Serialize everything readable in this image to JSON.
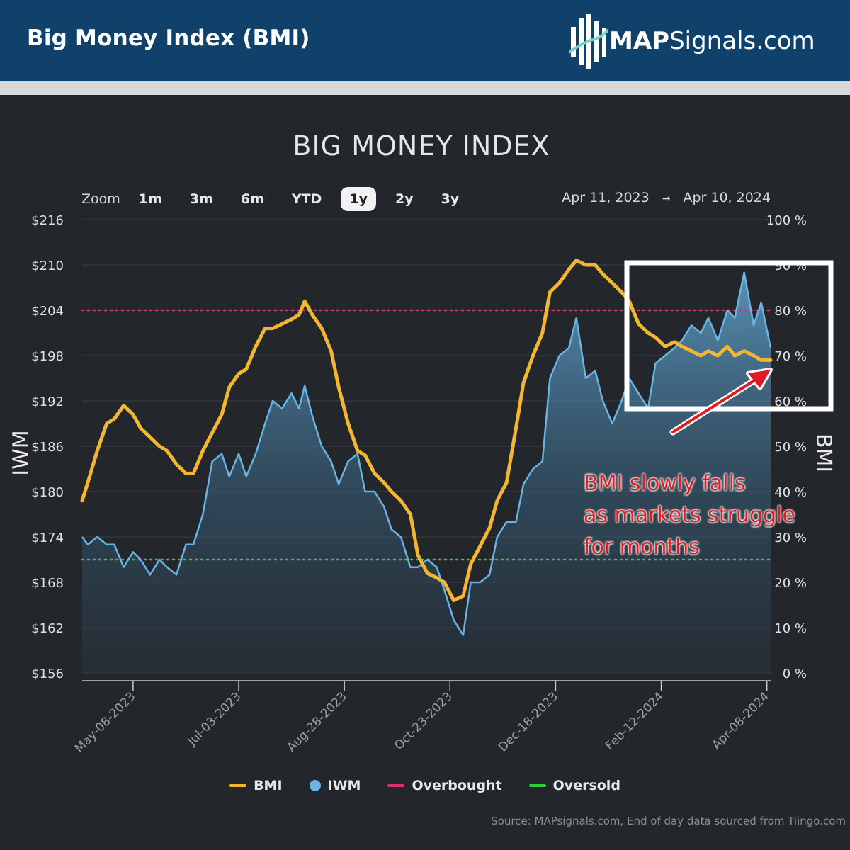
{
  "header": {
    "title": "Big Money Index (BMI)",
    "logo_strong": "MAP",
    "logo_rest": "Signals.com"
  },
  "zoom": {
    "label": "Zoom",
    "options": [
      "1m",
      "3m",
      "6m",
      "YTD",
      "1y",
      "2y",
      "3y"
    ],
    "selected": "1y"
  },
  "date_range": {
    "from": "Apr 11, 2023",
    "to": "Apr 10, 2024",
    "arrow": "→"
  },
  "annotation": {
    "lines": [
      "BMI slowly falls",
      "as markets struggle",
      "for months"
    ]
  },
  "source": "Source: MAPsignals.com, End of day data sourced from Tiingo.com",
  "colors": {
    "bmi": "#f2b630",
    "iwm": "#6ab4e4",
    "overbought": "#d6336c",
    "oversold": "#2ecc40",
    "annotation": "#e01b24"
  },
  "chart_data": {
    "type": "line",
    "title": "BIG MONEY INDEX",
    "x_range": [
      "2023-04-11",
      "2024-04-10"
    ],
    "xticks": [
      "May-08-2023",
      "Jul-03-2023",
      "Aug-28-2023",
      "Oct-23-2023",
      "Dec-18-2023",
      "Feb-12-2024",
      "Apr-08-2024"
    ],
    "y_left": {
      "label": "IWM",
      "range": [
        156,
        216
      ],
      "ticks": [
        "$216",
        "$210",
        "$204",
        "$198",
        "$192",
        "$186",
        "$180",
        "$174",
        "$168",
        "$162",
        "$156"
      ]
    },
    "y_right": {
      "label": "BMI",
      "range": [
        0,
        100
      ],
      "ticks": [
        "100 %",
        "90 %",
        "80 %",
        "70 %",
        "60 %",
        "50 %",
        "40 %",
        "30 %",
        "20 %",
        "10 %",
        "0 %"
      ]
    },
    "reference_lines": [
      {
        "name": "Overbought",
        "axis": "right",
        "value": 80
      },
      {
        "name": "Oversold",
        "axis": "right",
        "value": 25
      }
    ],
    "series": [
      {
        "name": "BMI",
        "axis": "right",
        "style": "line",
        "points": [
          [
            "2023-04-11",
            38
          ],
          [
            "2023-04-14",
            42
          ],
          [
            "2023-04-19",
            49
          ],
          [
            "2023-04-24",
            55
          ],
          [
            "2023-04-28",
            56
          ],
          [
            "2023-05-03",
            59
          ],
          [
            "2023-05-08",
            57
          ],
          [
            "2023-05-12",
            54
          ],
          [
            "2023-05-17",
            52
          ],
          [
            "2023-05-22",
            50
          ],
          [
            "2023-05-26",
            49
          ],
          [
            "2023-05-31",
            46
          ],
          [
            "2023-06-05",
            44
          ],
          [
            "2023-06-09",
            44
          ],
          [
            "2023-06-14",
            49
          ],
          [
            "2023-06-19",
            53
          ],
          [
            "2023-06-24",
            57
          ],
          [
            "2023-06-28",
            63
          ],
          [
            "2023-07-03",
            66
          ],
          [
            "2023-07-07",
            67
          ],
          [
            "2023-07-12",
            72
          ],
          [
            "2023-07-17",
            76
          ],
          [
            "2023-07-21",
            76
          ],
          [
            "2023-07-26",
            77
          ],
          [
            "2023-07-31",
            78
          ],
          [
            "2023-08-04",
            79
          ],
          [
            "2023-08-07",
            82
          ],
          [
            "2023-08-11",
            79
          ],
          [
            "2023-08-16",
            76
          ],
          [
            "2023-08-21",
            71
          ],
          [
            "2023-08-25",
            63
          ],
          [
            "2023-08-30",
            55
          ],
          [
            "2023-09-04",
            49
          ],
          [
            "2023-09-08",
            48
          ],
          [
            "2023-09-13",
            44
          ],
          [
            "2023-09-18",
            42
          ],
          [
            "2023-09-22",
            40
          ],
          [
            "2023-09-27",
            38
          ],
          [
            "2023-10-02",
            35
          ],
          [
            "2023-10-06",
            26
          ],
          [
            "2023-10-11",
            22
          ],
          [
            "2023-10-16",
            21
          ],
          [
            "2023-10-20",
            20
          ],
          [
            "2023-10-25",
            16
          ],
          [
            "2023-10-30",
            17
          ],
          [
            "2023-11-03",
            24
          ],
          [
            "2023-11-08",
            28
          ],
          [
            "2023-11-13",
            32
          ],
          [
            "2023-11-17",
            38
          ],
          [
            "2023-11-22",
            42
          ],
          [
            "2023-11-27",
            54
          ],
          [
            "2023-12-01",
            64
          ],
          [
            "2023-12-06",
            70
          ],
          [
            "2023-12-11",
            75
          ],
          [
            "2023-12-15",
            84
          ],
          [
            "2023-12-20",
            86
          ],
          [
            "2023-12-25",
            89
          ],
          [
            "2023-12-29",
            91
          ],
          [
            "2024-01-03",
            90
          ],
          [
            "2024-01-08",
            90
          ],
          [
            "2024-01-12",
            88
          ],
          [
            "2024-01-17",
            86
          ],
          [
            "2024-01-22",
            84
          ],
          [
            "2024-01-26",
            82
          ],
          [
            "2024-01-31",
            77
          ],
          [
            "2024-02-05",
            75
          ],
          [
            "2024-02-09",
            74
          ],
          [
            "2024-02-14",
            72
          ],
          [
            "2024-02-19",
            73
          ],
          [
            "2024-02-23",
            72
          ],
          [
            "2024-02-28",
            71
          ],
          [
            "2024-03-04",
            70
          ],
          [
            "2024-03-08",
            71
          ],
          [
            "2024-03-13",
            70
          ],
          [
            "2024-03-18",
            72
          ],
          [
            "2024-03-22",
            70
          ],
          [
            "2024-03-27",
            71
          ],
          [
            "2024-04-01",
            70
          ],
          [
            "2024-04-05",
            69
          ],
          [
            "2024-04-10",
            69
          ]
        ]
      },
      {
        "name": "IWM",
        "axis": "left",
        "style": "area",
        "points": [
          [
            "2023-04-11",
            174
          ],
          [
            "2023-04-14",
            173
          ],
          [
            "2023-04-19",
            174
          ],
          [
            "2023-04-24",
            173
          ],
          [
            "2023-04-28",
            173
          ],
          [
            "2023-05-03",
            170
          ],
          [
            "2023-05-08",
            172
          ],
          [
            "2023-05-12",
            171
          ],
          [
            "2023-05-17",
            169
          ],
          [
            "2023-05-22",
            171
          ],
          [
            "2023-05-26",
            170
          ],
          [
            "2023-05-31",
            169
          ],
          [
            "2023-06-05",
            173
          ],
          [
            "2023-06-09",
            173
          ],
          [
            "2023-06-14",
            177
          ],
          [
            "2023-06-19",
            184
          ],
          [
            "2023-06-24",
            185
          ],
          [
            "2023-06-28",
            182
          ],
          [
            "2023-07-03",
            185
          ],
          [
            "2023-07-07",
            182
          ],
          [
            "2023-07-12",
            185
          ],
          [
            "2023-07-17",
            189
          ],
          [
            "2023-07-21",
            192
          ],
          [
            "2023-07-26",
            191
          ],
          [
            "2023-07-31",
            193
          ],
          [
            "2023-08-04",
            191
          ],
          [
            "2023-08-07",
            194
          ],
          [
            "2023-08-11",
            190
          ],
          [
            "2023-08-16",
            186
          ],
          [
            "2023-08-21",
            184
          ],
          [
            "2023-08-25",
            181
          ],
          [
            "2023-08-30",
            184
          ],
          [
            "2023-09-04",
            185
          ],
          [
            "2023-09-08",
            180
          ],
          [
            "2023-09-13",
            180
          ],
          [
            "2023-09-18",
            178
          ],
          [
            "2023-09-22",
            175
          ],
          [
            "2023-09-27",
            174
          ],
          [
            "2023-10-02",
            170
          ],
          [
            "2023-10-06",
            170
          ],
          [
            "2023-10-11",
            171
          ],
          [
            "2023-10-16",
            170
          ],
          [
            "2023-10-20",
            167
          ],
          [
            "2023-10-25",
            163
          ],
          [
            "2023-10-30",
            161
          ],
          [
            "2023-11-03",
            168
          ],
          [
            "2023-11-08",
            168
          ],
          [
            "2023-11-13",
            169
          ],
          [
            "2023-11-17",
            174
          ],
          [
            "2023-11-22",
            176
          ],
          [
            "2023-11-27",
            176
          ],
          [
            "2023-12-01",
            181
          ],
          [
            "2023-12-06",
            183
          ],
          [
            "2023-12-11",
            184
          ],
          [
            "2023-12-15",
            195
          ],
          [
            "2023-12-20",
            198
          ],
          [
            "2023-12-25",
            199
          ],
          [
            "2023-12-29",
            203
          ],
          [
            "2024-01-03",
            195
          ],
          [
            "2024-01-08",
            196
          ],
          [
            "2024-01-12",
            192
          ],
          [
            "2024-01-17",
            189
          ],
          [
            "2024-01-22",
            192
          ],
          [
            "2024-01-26",
            195
          ],
          [
            "2024-01-31",
            193
          ],
          [
            "2024-02-05",
            191
          ],
          [
            "2024-02-09",
            197
          ],
          [
            "2024-02-14",
            198
          ],
          [
            "2024-02-19",
            199
          ],
          [
            "2024-02-23",
            200
          ],
          [
            "2024-02-28",
            202
          ],
          [
            "2024-03-04",
            201
          ],
          [
            "2024-03-08",
            203
          ],
          [
            "2024-03-13",
            200
          ],
          [
            "2024-03-18",
            204
          ],
          [
            "2024-03-22",
            203
          ],
          [
            "2024-03-27",
            209
          ],
          [
            "2024-04-01",
            202
          ],
          [
            "2024-04-05",
            205
          ],
          [
            "2024-04-10",
            199
          ]
        ]
      }
    ],
    "legend": [
      "BMI",
      "IWM",
      "Overbought",
      "Oversold"
    ],
    "grid": true,
    "legend_position": "bottom"
  }
}
